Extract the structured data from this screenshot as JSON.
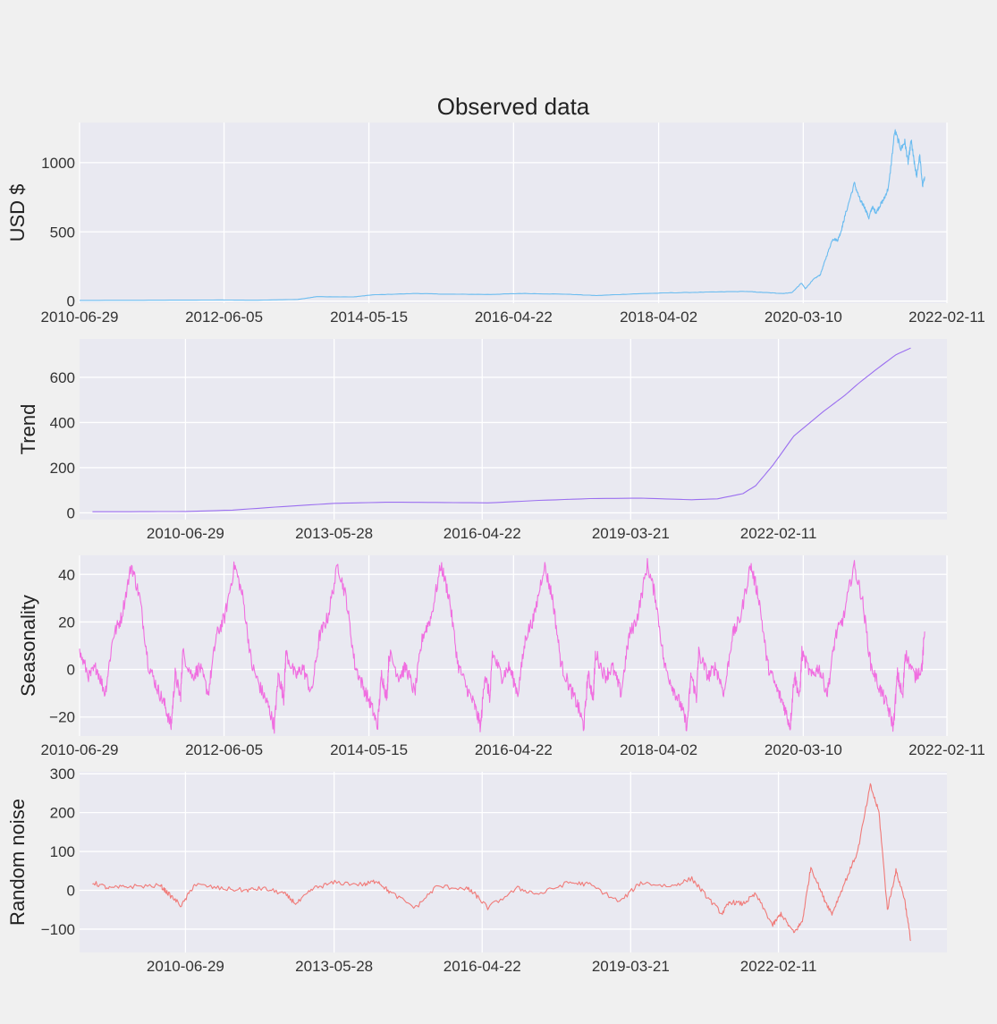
{
  "figure": {
    "title": "Observed data"
  },
  "chart_data": [
    {
      "type": "line",
      "name": "observed",
      "title": "Observed data",
      "ylabel": "USD $",
      "color": "#6bbcf0",
      "xlim": [
        "2010-06-29",
        "2022-02-11"
      ],
      "ylim": [
        -15,
        1290
      ],
      "xticks": [
        "2010-06-29",
        "2012-06-05",
        "2014-05-15",
        "2016-04-22",
        "2018-04-02",
        "2020-03-10",
        "2022-02-11"
      ],
      "yticks": [
        0,
        500,
        1000
      ],
      "ytick_labels": [
        "0",
        "500",
        "1000"
      ],
      "x": [
        "2010-06-29",
        "2011-06-01",
        "2012-06-01",
        "2012-11-01",
        "2013-06-01",
        "2013-09-01",
        "2014-03-01",
        "2014-06-01",
        "2015-01-01",
        "2015-06-01",
        "2016-01-01",
        "2016-06-01",
        "2017-01-01",
        "2017-06-01",
        "2017-12-01",
        "2018-06-01",
        "2018-12-01",
        "2019-06-01",
        "2019-09-01",
        "2019-12-01",
        "2020-01-15",
        "2020-03-01",
        "2020-03-20",
        "2020-05-01",
        "2020-06-01",
        "2020-07-01",
        "2020-08-01",
        "2020-08-25",
        "2020-09-10",
        "2020-10-01",
        "2020-11-15",
        "2020-12-15",
        "2021-01-01",
        "2021-01-25",
        "2021-02-10",
        "2021-03-01",
        "2021-03-20",
        "2021-04-10",
        "2021-05-01",
        "2021-06-01",
        "2021-07-01",
        "2021-07-20",
        "2021-08-05",
        "2021-08-20",
        "2021-09-01",
        "2021-09-15",
        "2021-10-01",
        "2021-10-15",
        "2021-10-25"
      ],
      "y": [
        5,
        6,
        8,
        6,
        12,
        32,
        30,
        45,
        55,
        50,
        48,
        55,
        50,
        40,
        52,
        60,
        65,
        70,
        62,
        55,
        62,
        130,
        90,
        160,
        190,
        320,
        450,
        440,
        500,
        620,
        850,
        720,
        690,
        600,
        680,
        640,
        690,
        740,
        820,
        1230,
        1100,
        1150,
        1000,
        1160,
        1030,
        900,
        1050,
        830,
        900
      ]
    },
    {
      "type": "line",
      "name": "trend",
      "ylabel": "Trend",
      "color": "#9b6ff0",
      "xlim": [
        "2008-06-01",
        "2025-06-01"
      ],
      "ylim": [
        -30,
        770
      ],
      "xticks": [
        "2010-06-29",
        "2013-05-28",
        "2016-04-22",
        "2019-03-21",
        "2022-02-11"
      ],
      "yticks": [
        0,
        200,
        400,
        600
      ],
      "ytick_labels": [
        "0",
        "200",
        "400",
        "600"
      ],
      "x": [
        "2008-09-01",
        "2009-06-01",
        "2010-06-29",
        "2011-06-01",
        "2012-06-01",
        "2013-06-01",
        "2014-06-01",
        "2015-06-01",
        "2016-06-01",
        "2017-06-01",
        "2018-06-01",
        "2019-06-01",
        "2020-06-01",
        "2020-12-01",
        "2021-06-01",
        "2021-09-01",
        "2022-01-01",
        "2022-06-01",
        "2023-01-01",
        "2023-06-01",
        "2023-09-01",
        "2024-01-01",
        "2024-06-01",
        "2024-09-15"
      ],
      "y": [
        5,
        5,
        6,
        12,
        28,
        42,
        47,
        46,
        44,
        55,
        63,
        65,
        58,
        62,
        85,
        120,
        210,
        340,
        450,
        520,
        570,
        630,
        700,
        730
      ]
    },
    {
      "type": "line",
      "name": "seasonality",
      "ylabel": "Seasonality",
      "color": "#f06ee0",
      "xlim": [
        "2010-06-29",
        "2022-02-11"
      ],
      "ylim": [
        -28,
        48
      ],
      "xticks": [
        "2010-06-29",
        "2012-06-05",
        "2014-05-15",
        "2016-04-22",
        "2018-04-02",
        "2020-03-10",
        "2022-02-11"
      ],
      "yticks": [
        -20,
        0,
        20,
        40
      ],
      "ytick_labels": [
        "−20",
        "0",
        "20",
        "40"
      ],
      "period_days": 505,
      "x": [
        "2010-06-29",
        "2010-08-15",
        "2010-09-20",
        "2010-11-01",
        "2010-12-10",
        "2011-01-20",
        "2011-03-10",
        "2011-04-20",
        "2011-06-01",
        "2011-07-15",
        "2011-08-20",
        "2011-09-20",
        "2011-10-10",
        "2011-11-05"
      ],
      "y": [
        7,
        -3,
        1,
        -10,
        14,
        22,
        44,
        30,
        2,
        -8,
        -15,
        -24,
        -2,
        -12
      ]
    },
    {
      "type": "line",
      "name": "random_noise",
      "ylabel": "Random noise",
      "color": "#f07a78",
      "xlim": [
        "2008-06-01",
        "2025-06-01"
      ],
      "ylim": [
        -160,
        305
      ],
      "xticks": [
        "2010-06-29",
        "2013-05-28",
        "2016-04-22",
        "2019-03-21",
        "2022-02-11"
      ],
      "yticks": [
        -100,
        0,
        100,
        200,
        300
      ],
      "ytick_labels": [
        "−100",
        "0",
        "100",
        "200",
        "300"
      ],
      "x": [
        "2008-09-01",
        "2009-01-01",
        "2009-06-01",
        "2010-01-01",
        "2010-03-01",
        "2010-06-01",
        "2010-09-01",
        "2011-03-01",
        "2011-09-01",
        "2012-01-01",
        "2012-06-01",
        "2012-09-01",
        "2013-01-01",
        "2013-06-01",
        "2014-01-01",
        "2014-04-01",
        "2014-07-01",
        "2015-01-01",
        "2015-06-01",
        "2016-01-01",
        "2016-03-01",
        "2016-06-01",
        "2017-01-01",
        "2017-06-01",
        "2018-01-01",
        "2018-06-01",
        "2019-01-01",
        "2019-06-01",
        "2020-01-01",
        "2020-06-01",
        "2020-09-01",
        "2021-01-01",
        "2021-03-01",
        "2021-06-01",
        "2021-09-01",
        "2022-01-01",
        "2022-03-01",
        "2022-06-01",
        "2022-08-01",
        "2022-10-01",
        "2023-01-01",
        "2023-03-01",
        "2023-06-01",
        "2023-09-01",
        "2023-12-01",
        "2024-02-01",
        "2024-04-01",
        "2024-06-01",
        "2024-08-01",
        "2024-09-15"
      ],
      "y": [
        20,
        5,
        10,
        12,
        -10,
        -40,
        15,
        5,
        0,
        5,
        -8,
        -35,
        5,
        20,
        15,
        25,
        -5,
        -45,
        10,
        5,
        -10,
        -45,
        5,
        -10,
        20,
        15,
        -30,
        20,
        10,
        30,
        -10,
        -60,
        -30,
        -35,
        -10,
        -90,
        -60,
        -110,
        -80,
        60,
        -20,
        -60,
        20,
        100,
        270,
        200,
        -50,
        50,
        -20,
        -130
      ]
    }
  ]
}
